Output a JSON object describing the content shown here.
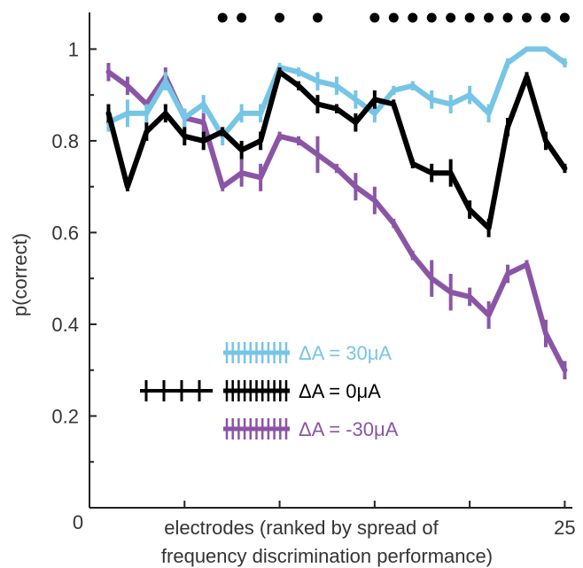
{
  "chart_data": {
    "type": "line",
    "ylabel": "p(correct)",
    "xlabel_lines": [
      "electrodes (ranked by spread of",
      "frequency discrimination performance)"
    ],
    "x_tick_labels": [
      "25"
    ],
    "x_origin_label": "0",
    "ylim": [
      0,
      1.08
    ],
    "xlim": [
      0,
      25.4
    ],
    "y_ticks": [
      0.2,
      0.4,
      0.6,
      0.8,
      1
    ],
    "y_tick_labels": [
      "0.2",
      "0.4",
      "0.6",
      "0.8",
      "1"
    ],
    "x_ticks": [
      5,
      10,
      15,
      20,
      25
    ],
    "x": [
      1,
      2,
      3,
      4,
      5,
      6,
      7,
      8,
      9,
      10,
      11,
      12,
      13,
      14,
      15,
      16,
      17,
      18,
      19,
      20,
      21,
      22,
      23,
      24,
      25
    ],
    "series": [
      {
        "name": "ΔA = 30μA",
        "color": "#76c5e6",
        "values": [
          0.84,
          0.86,
          0.86,
          0.93,
          0.85,
          0.88,
          0.81,
          0.86,
          0.86,
          0.96,
          0.95,
          0.93,
          0.92,
          0.89,
          0.86,
          0.91,
          0.92,
          0.89,
          0.88,
          0.9,
          0.86,
          0.97,
          1.0,
          1.0,
          0.97
        ],
        "errors": [
          0.02,
          0.03,
          0.02,
          0.02,
          0.02,
          0.02,
          0.02,
          0.02,
          0.02,
          0.01,
          0.01,
          0.02,
          0.02,
          0.02,
          0.02,
          0.01,
          0.01,
          0.02,
          0.02,
          0.02,
          0.02,
          0.01,
          0.0,
          0.0,
          0.01
        ]
      },
      {
        "name": "ΔA = 0μA",
        "color": "#000000",
        "values": [
          0.86,
          0.7,
          0.82,
          0.86,
          0.81,
          0.8,
          0.82,
          0.78,
          0.8,
          0.95,
          0.92,
          0.88,
          0.87,
          0.84,
          0.89,
          0.88,
          0.75,
          0.73,
          0.73,
          0.65,
          0.61,
          0.83,
          0.94,
          0.8,
          0.74
        ],
        "errors": [
          0.02,
          0.01,
          0.02,
          0.02,
          0.02,
          0.02,
          0.01,
          0.02,
          0.02,
          0.01,
          0.01,
          0.02,
          0.01,
          0.02,
          0.02,
          0.01,
          0.01,
          0.02,
          0.03,
          0.02,
          0.02,
          0.02,
          0.01,
          0.02,
          0.01
        ]
      },
      {
        "name": "ΔA = -30μA",
        "color": "#8b55a6",
        "values": [
          0.95,
          0.92,
          0.88,
          0.94,
          0.85,
          0.84,
          0.7,
          0.73,
          0.72,
          0.81,
          0.8,
          0.77,
          0.74,
          0.7,
          0.67,
          0.62,
          0.55,
          0.5,
          0.47,
          0.46,
          0.42,
          0.51,
          0.53,
          0.38,
          0.3
        ],
        "errors": [
          0.02,
          0.02,
          0.01,
          0.02,
          0.02,
          0.02,
          0.01,
          0.03,
          0.03,
          0.01,
          0.01,
          0.04,
          0.01,
          0.03,
          0.03,
          0.01,
          0.01,
          0.04,
          0.04,
          0.02,
          0.03,
          0.02,
          0.01,
          0.03,
          0.02
        ]
      }
    ],
    "significance_x": [
      7,
      8,
      10,
      12,
      15,
      16,
      17,
      18,
      19,
      20,
      21,
      22,
      23,
      24,
      25
    ],
    "legend_placement": "lower-center",
    "legend_entries": [
      {
        "label": "ΔA = 30μA",
        "color": "#76c5e6",
        "ticks": 11
      },
      {
        "label": "ΔA = 0μA",
        "color": "#000000",
        "ticks": 11
      },
      {
        "label": "ΔA = -30μA",
        "color": "#8b55a6",
        "ticks": 11
      }
    ],
    "grid": false
  }
}
